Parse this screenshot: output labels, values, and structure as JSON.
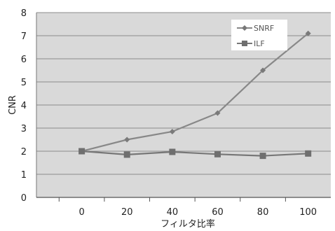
{
  "chart_data": {
    "type": "line",
    "title": "",
    "xlabel": "フィルタ比率",
    "ylabel": "CNR",
    "x": [
      0,
      20,
      40,
      60,
      80,
      100
    ],
    "xlim": [
      -20,
      110
    ],
    "ylim": [
      0,
      8
    ],
    "yticks": [
      0,
      1,
      2,
      3,
      4,
      5,
      6,
      7,
      8
    ],
    "grid": true,
    "legend_position": "top-right",
    "series": [
      {
        "name": "SNRF",
        "values": [
          2.0,
          2.5,
          2.85,
          3.65,
          5.5,
          7.1
        ],
        "marker": "diamond",
        "color": "#888888"
      },
      {
        "name": "ILF",
        "values": [
          2.0,
          1.85,
          1.97,
          1.87,
          1.8,
          1.9
        ],
        "marker": "square",
        "color": "#777777"
      }
    ],
    "plot_background": "#d9d9d9",
    "gridline_color": "#8c8c8c"
  }
}
